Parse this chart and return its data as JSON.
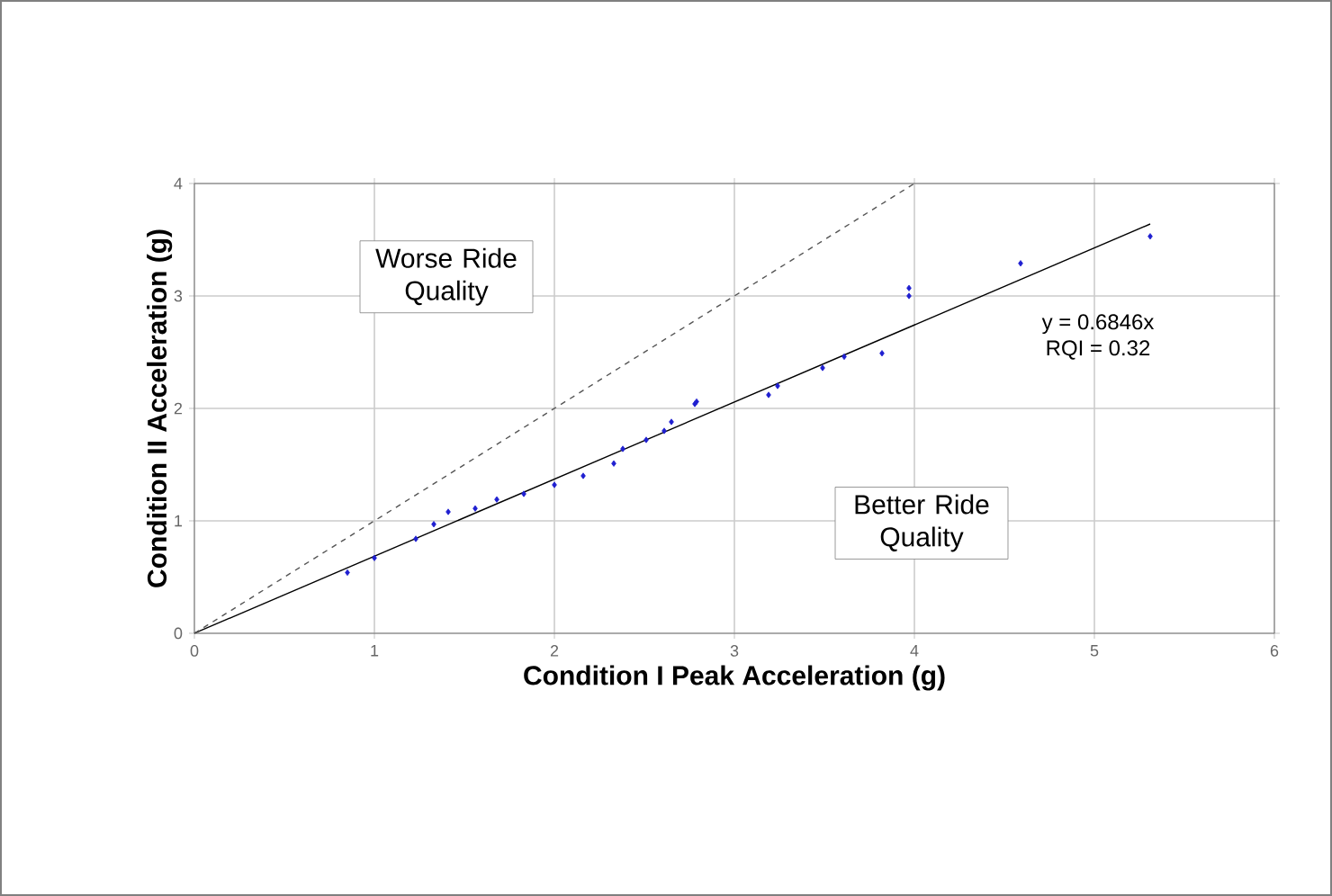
{
  "chart_data": {
    "type": "scatter",
    "xlabel": "Condition I Peak Acceleration (g)",
    "ylabel": "Condition II Acceleration (g)",
    "xlim": [
      0,
      6
    ],
    "ylim": [
      0,
      4
    ],
    "xticks": [
      0,
      1,
      2,
      3,
      4,
      5,
      6
    ],
    "yticks": [
      0,
      1,
      2,
      3,
      4
    ],
    "grid": true,
    "series": [
      {
        "marker": "diamond",
        "color": "#1f1fd0",
        "x": [
          0.85,
          1.0,
          1.23,
          1.33,
          1.41,
          1.56,
          1.68,
          1.83,
          2.0,
          2.16,
          2.33,
          2.38,
          2.51,
          2.61,
          2.65,
          2.78,
          2.79,
          3.19,
          3.24,
          3.49,
          3.61,
          3.82,
          3.97,
          3.97,
          4.59,
          5.31
        ],
        "values": [
          0.54,
          0.67,
          0.84,
          0.97,
          1.08,
          1.11,
          1.19,
          1.24,
          1.32,
          1.4,
          1.51,
          1.64,
          1.72,
          1.8,
          1.88,
          2.04,
          2.06,
          2.12,
          2.2,
          2.36,
          2.46,
          2.49,
          3.0,
          3.07,
          3.29,
          3.53
        ]
      },
      {
        "type": "line",
        "color": "#000000",
        "line_style": "solid",
        "x": [
          0,
          5.31
        ],
        "values": [
          0,
          3.64
        ]
      },
      {
        "type": "line",
        "color": "#555555",
        "line_style": "dashed",
        "x": [
          0,
          4
        ],
        "values": [
          0,
          4
        ]
      }
    ],
    "annotations": [
      "Worse Ride Quality",
      "Better Ride Quality",
      "y = 0.6846x",
      "RQI = 0.32"
    ]
  }
}
